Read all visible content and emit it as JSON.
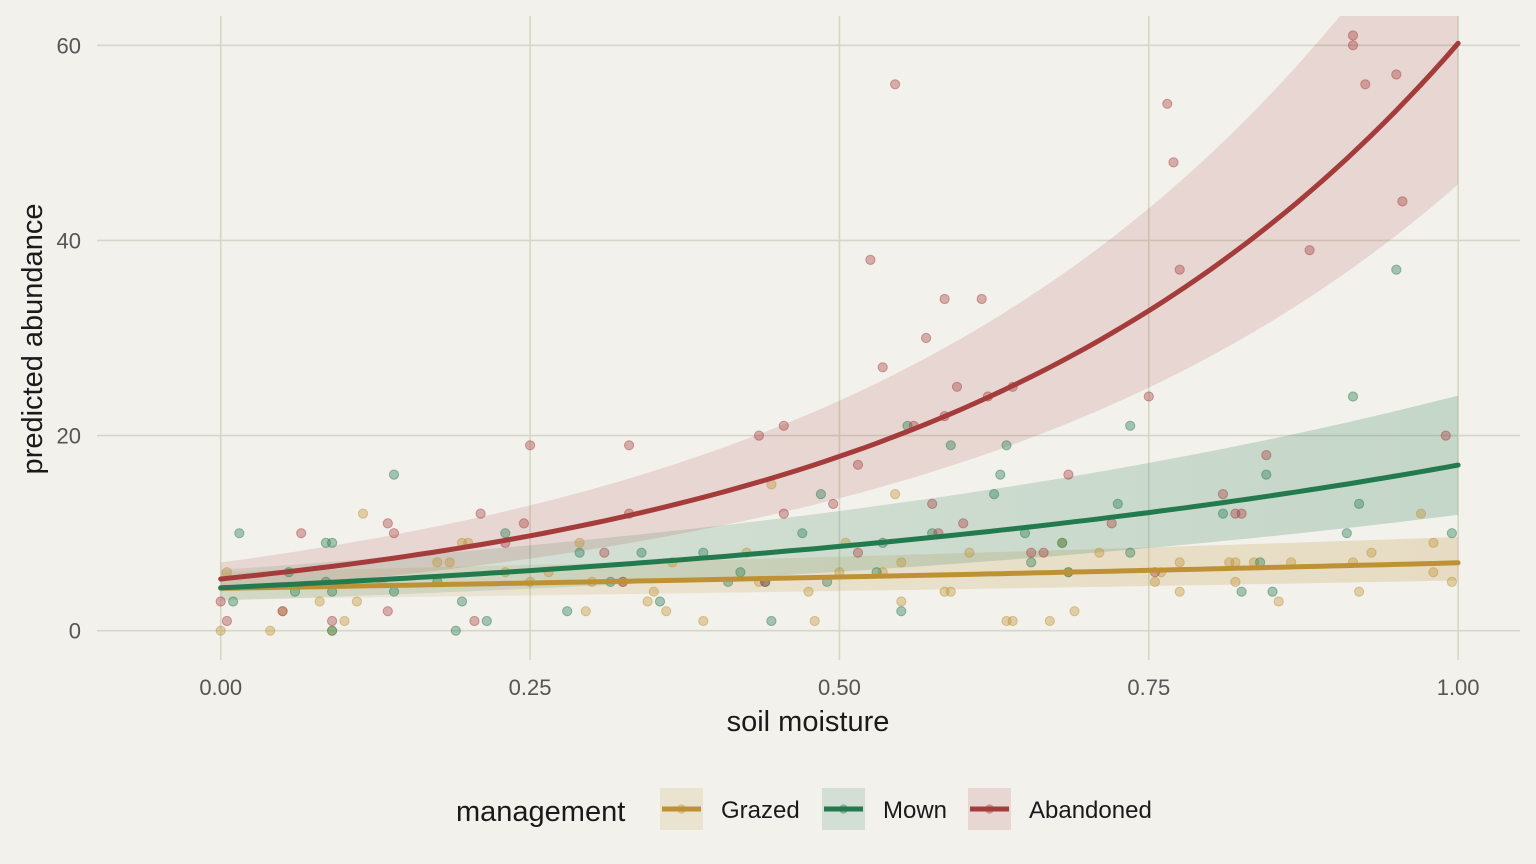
{
  "chart_data": {
    "type": "scatter",
    "title": "",
    "xlabel": "soil moisture",
    "ylabel": "predicted abundance",
    "xlim": [
      -0.1,
      1.05
    ],
    "ylim": [
      -3,
      63
    ],
    "x_ticks": [
      0,
      0.25,
      0.5,
      0.75,
      1.0
    ],
    "x_tick_labels": [
      "0.00",
      "0.25",
      "0.50",
      "0.75",
      "1.00"
    ],
    "y_ticks": [
      0,
      20,
      40,
      60
    ],
    "y_tick_labels": [
      "0",
      "20",
      "40",
      "60"
    ],
    "grid": true,
    "legend": {
      "title": "management",
      "position": "bottom"
    },
    "series": [
      {
        "name": "Grazed",
        "color": "#be9234",
        "fit": {
          "model": "exponential",
          "intercept": 4.35,
          "slope": 0.47
        },
        "ribbon_lower_factor": 0.74,
        "ribbon_upper_factor": 1.38,
        "ribbon_fade": true,
        "points": [
          [
            0.0,
            0
          ],
          [
            0.005,
            6
          ],
          [
            0.04,
            0
          ],
          [
            0.05,
            2
          ],
          [
            0.08,
            3
          ],
          [
            0.09,
            0
          ],
          [
            0.1,
            1
          ],
          [
            0.11,
            3
          ],
          [
            0.115,
            12
          ],
          [
            0.13,
            5
          ],
          [
            0.175,
            7
          ],
          [
            0.185,
            7
          ],
          [
            0.195,
            9
          ],
          [
            0.2,
            9
          ],
          [
            0.23,
            6
          ],
          [
            0.25,
            5
          ],
          [
            0.265,
            6
          ],
          [
            0.29,
            9
          ],
          [
            0.295,
            2
          ],
          [
            0.3,
            5
          ],
          [
            0.325,
            5
          ],
          [
            0.345,
            3
          ],
          [
            0.35,
            4
          ],
          [
            0.36,
            2
          ],
          [
            0.365,
            7
          ],
          [
            0.39,
            1
          ],
          [
            0.425,
            8
          ],
          [
            0.435,
            5
          ],
          [
            0.445,
            15
          ],
          [
            0.475,
            4
          ],
          [
            0.48,
            1
          ],
          [
            0.5,
            6
          ],
          [
            0.505,
            9
          ],
          [
            0.535,
            6
          ],
          [
            0.545,
            14
          ],
          [
            0.55,
            3
          ],
          [
            0.55,
            7
          ],
          [
            0.585,
            4
          ],
          [
            0.59,
            4
          ],
          [
            0.605,
            8
          ],
          [
            0.635,
            1
          ],
          [
            0.64,
            1
          ],
          [
            0.67,
            1
          ],
          [
            0.68,
            9
          ],
          [
            0.685,
            6
          ],
          [
            0.69,
            2
          ],
          [
            0.71,
            8
          ],
          [
            0.755,
            5
          ],
          [
            0.76,
            6
          ],
          [
            0.775,
            4
          ],
          [
            0.775,
            7
          ],
          [
            0.815,
            7
          ],
          [
            0.82,
            7
          ],
          [
            0.82,
            5
          ],
          [
            0.835,
            7
          ],
          [
            0.855,
            3
          ],
          [
            0.865,
            7
          ],
          [
            0.915,
            7
          ],
          [
            0.92,
            4
          ],
          [
            0.93,
            8
          ],
          [
            0.97,
            12
          ],
          [
            0.98,
            6
          ],
          [
            0.98,
            9
          ],
          [
            0.995,
            5
          ]
        ]
      },
      {
        "name": "Mown",
        "color": "#237a4f",
        "fit": {
          "model": "exponential",
          "intercept": 4.4,
          "slope": 1.35
        },
        "ribbon_lower_factor": 0.7,
        "ribbon_upper_factor": 1.42,
        "ribbon_fade": true,
        "points": [
          [
            0.01,
            3
          ],
          [
            0.015,
            10
          ],
          [
            0.055,
            6
          ],
          [
            0.06,
            4
          ],
          [
            0.085,
            5
          ],
          [
            0.085,
            9
          ],
          [
            0.09,
            0
          ],
          [
            0.09,
            4
          ],
          [
            0.09,
            9
          ],
          [
            0.14,
            16
          ],
          [
            0.14,
            4
          ],
          [
            0.175,
            5
          ],
          [
            0.19,
            0
          ],
          [
            0.195,
            3
          ],
          [
            0.215,
            1
          ],
          [
            0.23,
            10
          ],
          [
            0.28,
            2
          ],
          [
            0.29,
            8
          ],
          [
            0.315,
            5
          ],
          [
            0.34,
            8
          ],
          [
            0.355,
            3
          ],
          [
            0.39,
            8
          ],
          [
            0.41,
            5
          ],
          [
            0.42,
            6
          ],
          [
            0.44,
            5
          ],
          [
            0.445,
            1
          ],
          [
            0.47,
            10
          ],
          [
            0.485,
            14
          ],
          [
            0.49,
            5
          ],
          [
            0.53,
            6
          ],
          [
            0.535,
            9
          ],
          [
            0.55,
            2
          ],
          [
            0.555,
            21
          ],
          [
            0.575,
            10
          ],
          [
            0.59,
            19
          ],
          [
            0.625,
            14
          ],
          [
            0.63,
            16
          ],
          [
            0.635,
            19
          ],
          [
            0.65,
            10
          ],
          [
            0.655,
            7
          ],
          [
            0.68,
            9
          ],
          [
            0.685,
            6
          ],
          [
            0.725,
            13
          ],
          [
            0.735,
            21
          ],
          [
            0.735,
            8
          ],
          [
            0.81,
            12
          ],
          [
            0.825,
            4
          ],
          [
            0.84,
            7
          ],
          [
            0.845,
            16
          ],
          [
            0.85,
            4
          ],
          [
            0.91,
            10
          ],
          [
            0.915,
            24
          ],
          [
            0.92,
            13
          ],
          [
            0.95,
            37
          ],
          [
            0.995,
            10
          ]
        ]
      },
      {
        "name": "Abandoned",
        "color": "#a53c3c",
        "fit": {
          "model": "exponential",
          "intercept": 5.3,
          "slope": 2.43
        },
        "ribbon_lower_factor": 0.76,
        "ribbon_upper_factor": 1.32,
        "ribbon_fade": false,
        "points": [
          [
            0.0,
            3
          ],
          [
            0.005,
            1
          ],
          [
            0.05,
            2
          ],
          [
            0.065,
            10
          ],
          [
            0.09,
            1
          ],
          [
            0.135,
            11
          ],
          [
            0.135,
            2
          ],
          [
            0.14,
            10
          ],
          [
            0.205,
            1
          ],
          [
            0.21,
            12
          ],
          [
            0.23,
            9
          ],
          [
            0.245,
            11
          ],
          [
            0.25,
            19
          ],
          [
            0.31,
            8
          ],
          [
            0.325,
            5
          ],
          [
            0.33,
            19
          ],
          [
            0.33,
            12
          ],
          [
            0.435,
            20
          ],
          [
            0.44,
            5
          ],
          [
            0.455,
            12
          ],
          [
            0.455,
            21
          ],
          [
            0.495,
            13
          ],
          [
            0.515,
            8
          ],
          [
            0.515,
            17
          ],
          [
            0.525,
            38
          ],
          [
            0.535,
            27
          ],
          [
            0.545,
            56
          ],
          [
            0.56,
            21
          ],
          [
            0.57,
            30
          ],
          [
            0.575,
            13
          ],
          [
            0.58,
            10
          ],
          [
            0.585,
            22
          ],
          [
            0.585,
            34
          ],
          [
            0.595,
            25
          ],
          [
            0.6,
            11
          ],
          [
            0.615,
            34
          ],
          [
            0.62,
            24
          ],
          [
            0.64,
            25
          ],
          [
            0.655,
            8
          ],
          [
            0.665,
            8
          ],
          [
            0.685,
            16
          ],
          [
            0.72,
            11
          ],
          [
            0.75,
            24
          ],
          [
            0.755,
            6
          ],
          [
            0.765,
            54
          ],
          [
            0.77,
            48
          ],
          [
            0.775,
            37
          ],
          [
            0.81,
            14
          ],
          [
            0.82,
            12
          ],
          [
            0.825,
            12
          ],
          [
            0.845,
            18
          ],
          [
            0.88,
            39
          ],
          [
            0.915,
            61
          ],
          [
            0.915,
            60
          ],
          [
            0.925,
            56
          ],
          [
            0.95,
            57
          ],
          [
            0.955,
            44
          ],
          [
            0.99,
            20
          ]
        ]
      }
    ]
  }
}
